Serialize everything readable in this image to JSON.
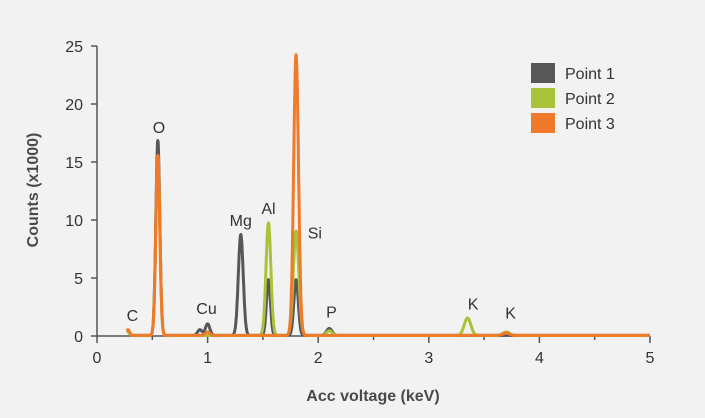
{
  "chart_data": {
    "type": "line",
    "xlabel": "Acc voltage (keV)",
    "ylabel": "Counts (x1000)",
    "xlim": [
      0,
      5
    ],
    "ylim": [
      0,
      25
    ],
    "xticks": [
      0,
      1,
      2,
      3,
      4,
      5
    ],
    "yticks": [
      0,
      5,
      10,
      15,
      20,
      25
    ],
    "grid": false,
    "legend_position": "top-right",
    "series": [
      {
        "name": "Point 1",
        "color": "#555759",
        "peaks": [
          {
            "x": 0.28,
            "y": 0.3,
            "w": 0.015
          },
          {
            "x": 0.55,
            "y": 16.8,
            "w": 0.018
          },
          {
            "x": 0.93,
            "y": 0.5,
            "w": 0.02
          },
          {
            "x": 1.0,
            "y": 1.0,
            "w": 0.02
          },
          {
            "x": 1.3,
            "y": 8.7,
            "w": 0.022
          },
          {
            "x": 1.55,
            "y": 4.8,
            "w": 0.018
          },
          {
            "x": 1.8,
            "y": 4.8,
            "w": 0.02
          },
          {
            "x": 2.1,
            "y": 0.6,
            "w": 0.025
          }
        ]
      },
      {
        "name": "Point 2",
        "color": "#a8c23a",
        "peaks": [
          {
            "x": 0.28,
            "y": 0.3,
            "w": 0.015
          },
          {
            "x": 0.55,
            "y": 15.5,
            "w": 0.018
          },
          {
            "x": 1.55,
            "y": 9.7,
            "w": 0.022
          },
          {
            "x": 1.8,
            "y": 9.0,
            "w": 0.025
          },
          {
            "x": 2.1,
            "y": 0.4,
            "w": 0.025
          },
          {
            "x": 3.35,
            "y": 1.5,
            "w": 0.03
          },
          {
            "x": 3.7,
            "y": 0.3,
            "w": 0.03
          }
        ]
      },
      {
        "name": "Point 3",
        "color": "#f07a2a",
        "peaks": [
          {
            "x": 0.28,
            "y": 0.5,
            "w": 0.015
          },
          {
            "x": 0.55,
            "y": 15.5,
            "w": 0.018
          },
          {
            "x": 1.0,
            "y": 0.3,
            "w": 0.02
          },
          {
            "x": 1.8,
            "y": 24.2,
            "w": 0.022
          },
          {
            "x": 3.7,
            "y": 0.2,
            "w": 0.03
          }
        ]
      }
    ],
    "annotations": [
      {
        "text": "C",
        "x": 0.32,
        "y": 1.3
      },
      {
        "text": "O",
        "x": 0.56,
        "y": 17.5
      },
      {
        "text": "Cu",
        "x": 0.99,
        "y": 1.9
      },
      {
        "text": "Mg",
        "x": 1.3,
        "y": 9.5
      },
      {
        "text": "Al",
        "x": 1.55,
        "y": 10.5
      },
      {
        "text": "Si",
        "x": 1.97,
        "y": 8.4
      },
      {
        "text": "P",
        "x": 2.12,
        "y": 1.6
      },
      {
        "text": "K",
        "x": 3.4,
        "y": 2.3
      },
      {
        "text": "K",
        "x": 3.74,
        "y": 1.5
      }
    ]
  }
}
